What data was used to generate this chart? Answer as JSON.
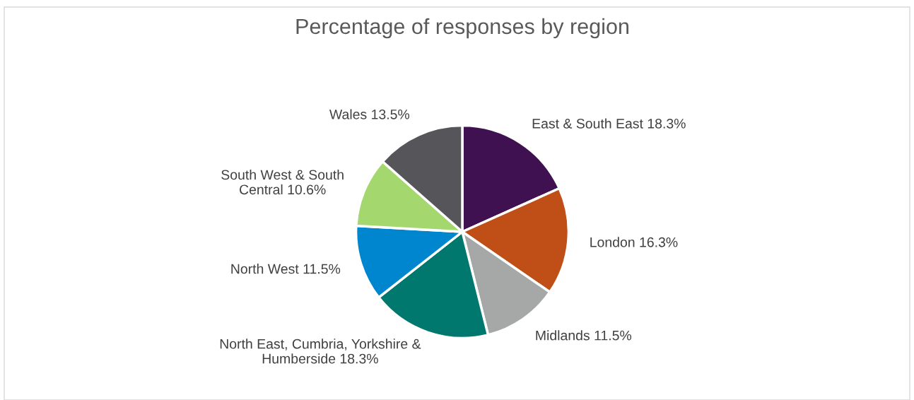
{
  "chart_data": {
    "type": "pie",
    "title": "Percentage of responses by region",
    "categories": [
      "East & South East",
      "London",
      "Midlands",
      "North East, Cumbria, Yorkshire & Humberside",
      "North West",
      "South West & South Central",
      "Wales"
    ],
    "values": [
      18.3,
      16.3,
      11.5,
      18.3,
      11.5,
      10.6,
      13.5
    ],
    "value_labels": [
      "18.3%",
      "16.3%",
      "11.5%",
      "18.3%",
      "11.5%",
      "10.6%",
      "13.5%"
    ],
    "colors": [
      "#3f1150",
      "#c04f17",
      "#a6a8a8",
      "#00786e",
      "#0085cf",
      "#a4d86e",
      "#56565a"
    ],
    "legend": false
  }
}
